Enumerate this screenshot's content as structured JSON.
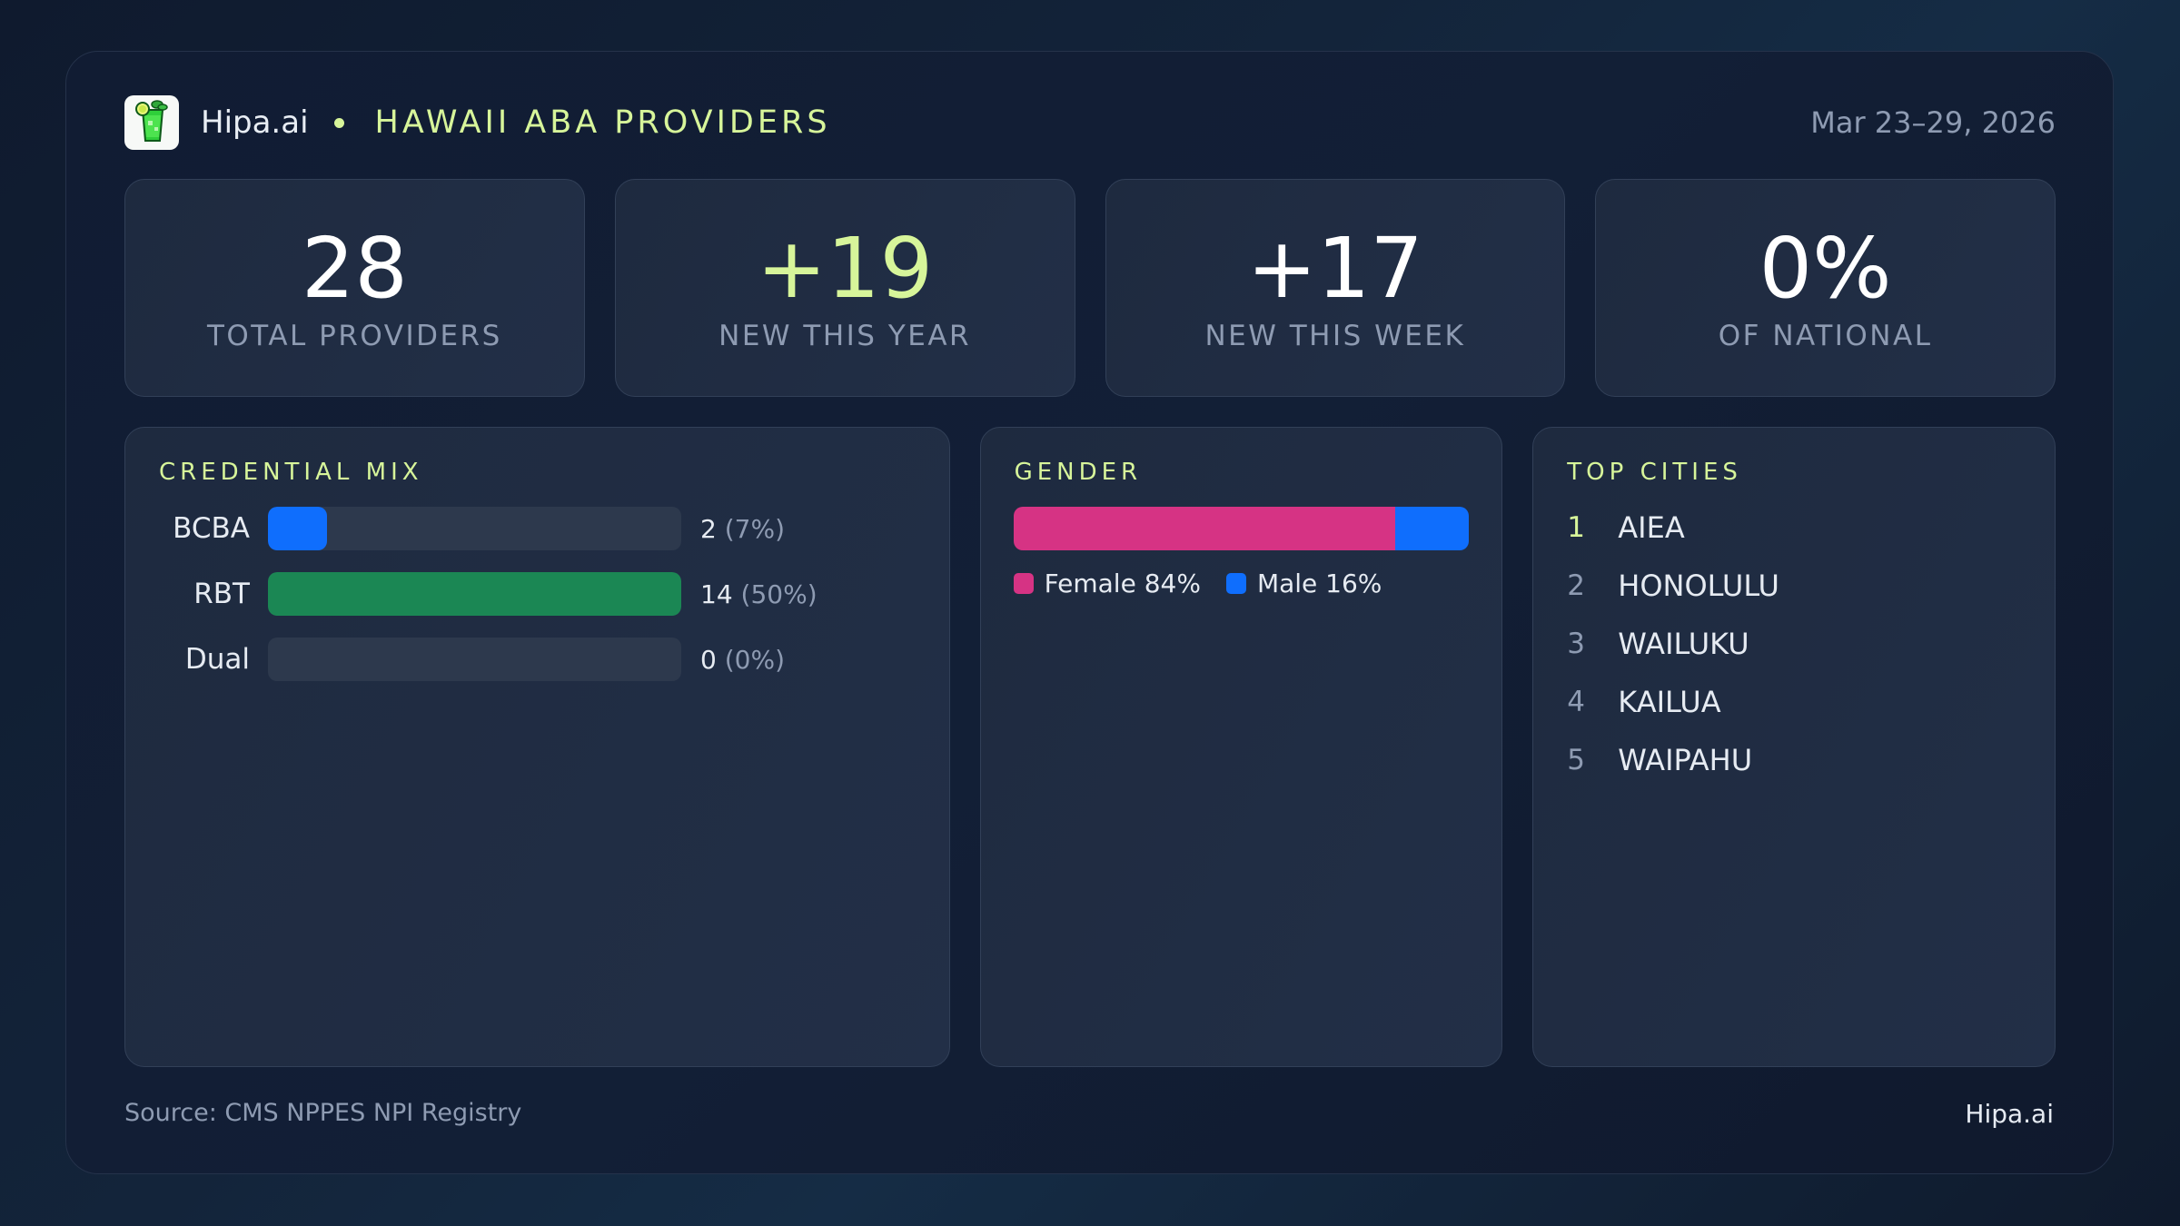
{
  "header": {
    "brand": "Hipa.ai",
    "title": "HAWAII ABA PROVIDERS",
    "date_range": "Mar 23–29, 2026",
    "logo_icon": "cocktail-glass-icon"
  },
  "stats": [
    {
      "value": "28",
      "label": "TOTAL PROVIDERS",
      "accent": false
    },
    {
      "value": "+19",
      "label": "NEW THIS YEAR",
      "accent": true
    },
    {
      "value": "+17",
      "label": "NEW THIS WEEK",
      "accent": false
    },
    {
      "value": "0%",
      "label": "OF NATIONAL",
      "accent": false
    }
  ],
  "credential_mix": {
    "title": "CREDENTIAL MIX",
    "rows": [
      {
        "label": "BCBA",
        "count": "2",
        "pct": "(7%)",
        "fill_pct": 14.3,
        "color": "#0f6efd"
      },
      {
        "label": "RBT",
        "count": "14",
        "pct": "(50%)",
        "fill_pct": 100,
        "color": "#1b8754"
      },
      {
        "label": "Dual",
        "count": "0",
        "pct": "(0%)",
        "fill_pct": 0,
        "color": "#0f6efd"
      }
    ]
  },
  "gender": {
    "title": "GENDER",
    "segments": [
      {
        "label": "Female 84%",
        "pct": 84,
        "color": "#d63384"
      },
      {
        "label": "Male 16%",
        "pct": 16,
        "color": "#0f6efd"
      }
    ]
  },
  "top_cities": {
    "title": "TOP CITIES",
    "items": [
      {
        "rank": "1",
        "name": "AIEA"
      },
      {
        "rank": "2",
        "name": "HONOLULU"
      },
      {
        "rank": "3",
        "name": "WAILUKU"
      },
      {
        "rank": "4",
        "name": "KAILUA"
      },
      {
        "rank": "5",
        "name": "WAIPAHU"
      }
    ]
  },
  "footer": {
    "source": "Source: CMS NPPES NPI Registry",
    "brand": "Hipa.ai"
  },
  "colors": {
    "accent": "#d7f59a",
    "muted": "#8e9bb2",
    "bcba": "#0f6efd",
    "rbt": "#1b8754",
    "female": "#d63384",
    "male": "#0f6efd"
  },
  "chart_data": [
    {
      "type": "bar",
      "title": "CREDENTIAL MIX",
      "categories": [
        "BCBA",
        "RBT",
        "Dual"
      ],
      "values": [
        2,
        14,
        0
      ],
      "percent_labels": [
        "7%",
        "50%",
        "0%"
      ],
      "orientation": "horizontal"
    },
    {
      "type": "bar",
      "title": "GENDER",
      "stacked": true,
      "categories": [
        "Female",
        "Male"
      ],
      "values": [
        84,
        16
      ],
      "unit": "%"
    }
  ]
}
